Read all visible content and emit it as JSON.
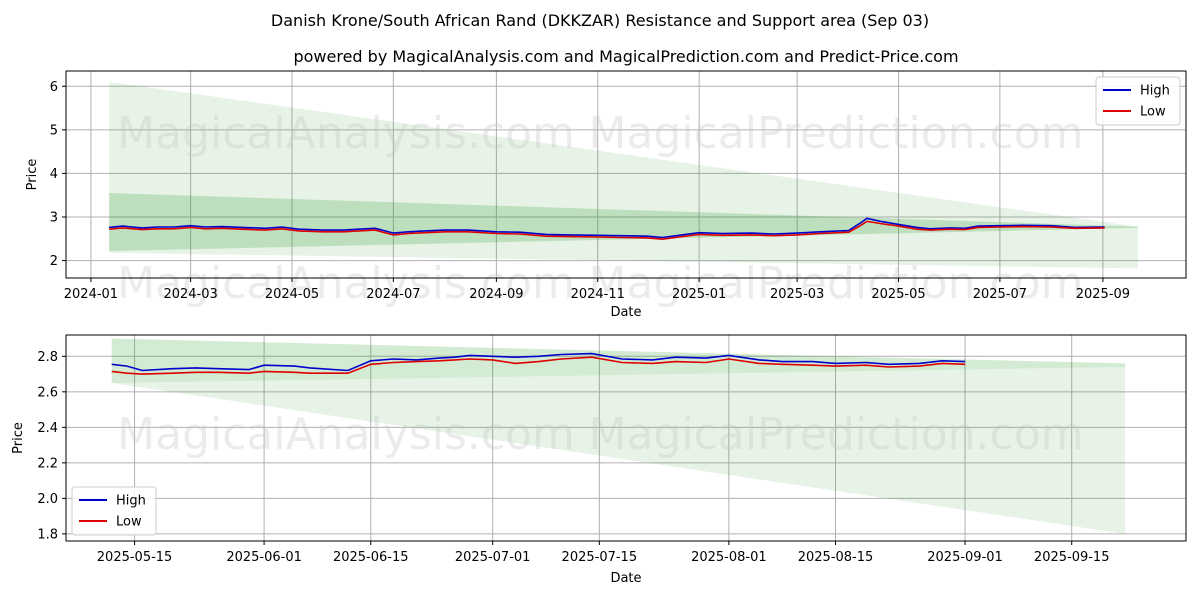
{
  "title": "Danish Krone/South African Rand (DKKZAR) Resistance and Support area (Sep 03)",
  "subtitle": "powered by MagicalAnalysis.com and MagicalPrediction.com and Predict-Price.com",
  "watermarks": [
    "MagicalAnalysis.com",
    "MagicalPrediction.com"
  ],
  "colors": {
    "high": "#0000cc",
    "low": "#dd0000",
    "band": "#2e9b2e"
  },
  "chart_data": [
    {
      "type": "line",
      "xlabel": "Date",
      "ylabel": "Price",
      "xlim": [
        "2023-12-17",
        "2025-10-21"
      ],
      "ylim": [
        1.6,
        6.35
      ],
      "xticks": [
        "2024-01",
        "2024-03",
        "2024-05",
        "2024-07",
        "2024-09",
        "2024-11",
        "2025-01",
        "2025-03",
        "2025-05",
        "2025-07",
        "2025-09"
      ],
      "yticks": [
        2,
        3,
        4,
        5,
        6
      ],
      "grid": true,
      "legend": "top-right",
      "series": [
        {
          "name": "High",
          "points": [
            [
              "2024-01-12",
              2.76
            ],
            [
              "2024-01-20",
              2.79
            ],
            [
              "2024-02-01",
              2.75
            ],
            [
              "2024-02-10",
              2.77
            ],
            [
              "2024-02-20",
              2.77
            ],
            [
              "2024-03-01",
              2.8
            ],
            [
              "2024-03-10",
              2.77
            ],
            [
              "2024-03-20",
              2.78
            ],
            [
              "2024-04-01",
              2.76
            ],
            [
              "2024-04-15",
              2.74
            ],
            [
              "2024-04-25",
              2.77
            ],
            [
              "2024-05-05",
              2.72
            ],
            [
              "2024-05-20",
              2.7
            ],
            [
              "2024-06-01",
              2.7
            ],
            [
              "2024-06-10",
              2.72
            ],
            [
              "2024-06-20",
              2.74
            ],
            [
              "2024-07-01",
              2.63
            ],
            [
              "2024-07-10",
              2.66
            ],
            [
              "2024-07-20",
              2.68
            ],
            [
              "2024-08-01",
              2.7
            ],
            [
              "2024-08-15",
              2.7
            ],
            [
              "2024-09-01",
              2.66
            ],
            [
              "2024-09-15",
              2.65
            ],
            [
              "2024-10-01",
              2.6
            ],
            [
              "2024-10-15",
              2.59
            ],
            [
              "2024-11-01",
              2.58
            ],
            [
              "2024-11-15",
              2.57
            ],
            [
              "2024-12-01",
              2.56
            ],
            [
              "2024-12-10",
              2.53
            ],
            [
              "2024-12-20",
              2.58
            ],
            [
              "2025-01-01",
              2.64
            ],
            [
              "2025-01-15",
              2.62
            ],
            [
              "2025-02-01",
              2.63
            ],
            [
              "2025-02-15",
              2.61
            ],
            [
              "2025-03-01",
              2.63
            ],
            [
              "2025-03-15",
              2.66
            ],
            [
              "2025-04-01",
              2.69
            ],
            [
              "2025-04-08",
              2.86
            ],
            [
              "2025-04-12",
              2.97
            ],
            [
              "2025-04-20",
              2.9
            ],
            [
              "2025-05-01",
              2.83
            ],
            [
              "2025-05-12",
              2.76
            ],
            [
              "2025-05-20",
              2.73
            ],
            [
              "2025-06-01",
              2.75
            ],
            [
              "2025-06-10",
              2.74
            ],
            [
              "2025-06-18",
              2.79
            ],
            [
              "2025-07-01",
              2.8
            ],
            [
              "2025-07-15",
              2.81
            ],
            [
              "2025-08-01",
              2.8
            ],
            [
              "2025-08-15",
              2.76
            ],
            [
              "2025-09-02",
              2.77
            ]
          ]
        },
        {
          "name": "Low",
          "points": [
            [
              "2024-01-12",
              2.72
            ],
            [
              "2024-01-20",
              2.75
            ],
            [
              "2024-02-01",
              2.71
            ],
            [
              "2024-02-10",
              2.73
            ],
            [
              "2024-02-20",
              2.73
            ],
            [
              "2024-03-01",
              2.76
            ],
            [
              "2024-03-10",
              2.73
            ],
            [
              "2024-03-20",
              2.74
            ],
            [
              "2024-04-01",
              2.72
            ],
            [
              "2024-04-15",
              2.7
            ],
            [
              "2024-04-25",
              2.73
            ],
            [
              "2024-05-05",
              2.68
            ],
            [
              "2024-05-20",
              2.66
            ],
            [
              "2024-06-01",
              2.66
            ],
            [
              "2024-06-10",
              2.68
            ],
            [
              "2024-06-20",
              2.7
            ],
            [
              "2024-07-01",
              2.59
            ],
            [
              "2024-07-10",
              2.62
            ],
            [
              "2024-07-20",
              2.64
            ],
            [
              "2024-08-01",
              2.66
            ],
            [
              "2024-08-15",
              2.66
            ],
            [
              "2024-09-01",
              2.62
            ],
            [
              "2024-09-15",
              2.61
            ],
            [
              "2024-10-01",
              2.56
            ],
            [
              "2024-10-15",
              2.55
            ],
            [
              "2024-11-01",
              2.54
            ],
            [
              "2024-11-15",
              2.53
            ],
            [
              "2024-12-01",
              2.52
            ],
            [
              "2024-12-10",
              2.49
            ],
            [
              "2024-12-20",
              2.54
            ],
            [
              "2025-01-01",
              2.6
            ],
            [
              "2025-01-15",
              2.58
            ],
            [
              "2025-02-01",
              2.59
            ],
            [
              "2025-02-15",
              2.57
            ],
            [
              "2025-03-01",
              2.59
            ],
            [
              "2025-03-15",
              2.62
            ],
            [
              "2025-04-01",
              2.65
            ],
            [
              "2025-04-08",
              2.8
            ],
            [
              "2025-04-12",
              2.9
            ],
            [
              "2025-04-20",
              2.85
            ],
            [
              "2025-05-01",
              2.79
            ],
            [
              "2025-05-12",
              2.72
            ],
            [
              "2025-05-20",
              2.7
            ],
            [
              "2025-06-01",
              2.72
            ],
            [
              "2025-06-10",
              2.71
            ],
            [
              "2025-06-18",
              2.76
            ],
            [
              "2025-07-01",
              2.77
            ],
            [
              "2025-07-15",
              2.78
            ],
            [
              "2025-08-01",
              2.77
            ],
            [
              "2025-08-15",
              2.74
            ],
            [
              "2025-09-02",
              2.75
            ]
          ]
        }
      ],
      "bands": [
        {
          "x": [
            "2024-01-12",
            "2025-09-22"
          ],
          "upper": [
            6.1,
            2.78
          ],
          "lower": [
            2.18,
            1.82
          ],
          "opacity": 0.12
        },
        {
          "x": [
            "2024-01-12",
            "2025-09-22"
          ],
          "upper": [
            3.55,
            2.78
          ],
          "lower": [
            2.22,
            2.75
          ],
          "opacity": 0.22
        }
      ]
    },
    {
      "type": "line",
      "xlabel": "Date",
      "ylabel": "Price",
      "xlim": [
        "2025-05-06",
        "2025-09-30"
      ],
      "ylim": [
        1.76,
        2.92
      ],
      "xticks": [
        "2025-05-15",
        "2025-06-01",
        "2025-06-15",
        "2025-07-01",
        "2025-07-15",
        "2025-08-01",
        "2025-08-15",
        "2025-09-01",
        "2025-09-15"
      ],
      "yticks": [
        1.8,
        2.0,
        2.2,
        2.4,
        2.6,
        2.8
      ],
      "grid": true,
      "legend": "bottom-left",
      "series": [
        {
          "name": "High",
          "points": [
            [
              "2025-05-12",
              2.755
            ],
            [
              "2025-05-14",
              2.745
            ],
            [
              "2025-05-16",
              2.72
            ],
            [
              "2025-05-20",
              2.73
            ],
            [
              "2025-05-23",
              2.735
            ],
            [
              "2025-05-26",
              2.73
            ],
            [
              "2025-05-30",
              2.725
            ],
            [
              "2025-06-01",
              2.75
            ],
            [
              "2025-06-05",
              2.745
            ],
            [
              "2025-06-07",
              2.735
            ],
            [
              "2025-06-12",
              2.72
            ],
            [
              "2025-06-15",
              2.775
            ],
            [
              "2025-06-18",
              2.785
            ],
            [
              "2025-06-21",
              2.78
            ],
            [
              "2025-06-24",
              2.79
            ],
            [
              "2025-06-26",
              2.795
            ],
            [
              "2025-06-28",
              2.805
            ],
            [
              "2025-07-01",
              2.8
            ],
            [
              "2025-07-04",
              2.795
            ],
            [
              "2025-07-07",
              2.8
            ],
            [
              "2025-07-10",
              2.81
            ],
            [
              "2025-07-14",
              2.815
            ],
            [
              "2025-07-18",
              2.785
            ],
            [
              "2025-07-22",
              2.78
            ],
            [
              "2025-07-25",
              2.795
            ],
            [
              "2025-07-29",
              2.79
            ],
            [
              "2025-08-01",
              2.805
            ],
            [
              "2025-08-05",
              2.78
            ],
            [
              "2025-08-08",
              2.77
            ],
            [
              "2025-08-12",
              2.77
            ],
            [
              "2025-08-15",
              2.76
            ],
            [
              "2025-08-19",
              2.765
            ],
            [
              "2025-08-22",
              2.755
            ],
            [
              "2025-08-26",
              2.76
            ],
            [
              "2025-08-29",
              2.775
            ],
            [
              "2025-09-01",
              2.77
            ]
          ]
        },
        {
          "name": "Low",
          "points": [
            [
              "2025-05-12",
              2.715
            ],
            [
              "2025-05-14",
              2.705
            ],
            [
              "2025-05-16",
              2.7
            ],
            [
              "2025-05-20",
              2.705
            ],
            [
              "2025-05-23",
              2.71
            ],
            [
              "2025-05-26",
              2.71
            ],
            [
              "2025-05-30",
              2.705
            ],
            [
              "2025-06-01",
              2.715
            ],
            [
              "2025-06-05",
              2.71
            ],
            [
              "2025-06-07",
              2.705
            ],
            [
              "2025-06-12",
              2.705
            ],
            [
              "2025-06-15",
              2.755
            ],
            [
              "2025-06-18",
              2.765
            ],
            [
              "2025-06-21",
              2.77
            ],
            [
              "2025-06-24",
              2.775
            ],
            [
              "2025-06-26",
              2.78
            ],
            [
              "2025-06-28",
              2.785
            ],
            [
              "2025-07-01",
              2.78
            ],
            [
              "2025-07-04",
              2.76
            ],
            [
              "2025-07-07",
              2.77
            ],
            [
              "2025-07-10",
              2.785
            ],
            [
              "2025-07-14",
              2.795
            ],
            [
              "2025-07-18",
              2.765
            ],
            [
              "2025-07-22",
              2.76
            ],
            [
              "2025-07-25",
              2.77
            ],
            [
              "2025-07-29",
              2.765
            ],
            [
              "2025-08-01",
              2.785
            ],
            [
              "2025-08-05",
              2.76
            ],
            [
              "2025-08-08",
              2.755
            ],
            [
              "2025-08-12",
              2.75
            ],
            [
              "2025-08-15",
              2.745
            ],
            [
              "2025-08-19",
              2.75
            ],
            [
              "2025-08-22",
              2.74
            ],
            [
              "2025-08-26",
              2.745
            ],
            [
              "2025-08-29",
              2.76
            ],
            [
              "2025-09-01",
              2.755
            ]
          ]
        }
      ],
      "bands": [
        {
          "x": [
            "2025-05-12",
            "2025-09-22"
          ],
          "upper": [
            2.9,
            2.76
          ],
          "lower": [
            2.65,
            1.8
          ],
          "opacity": 0.12
        },
        {
          "x": [
            "2025-05-12",
            "2025-09-22"
          ],
          "upper": [
            2.9,
            2.76
          ],
          "lower": [
            2.65,
            2.74
          ],
          "opacity": 0.1
        }
      ]
    }
  ]
}
